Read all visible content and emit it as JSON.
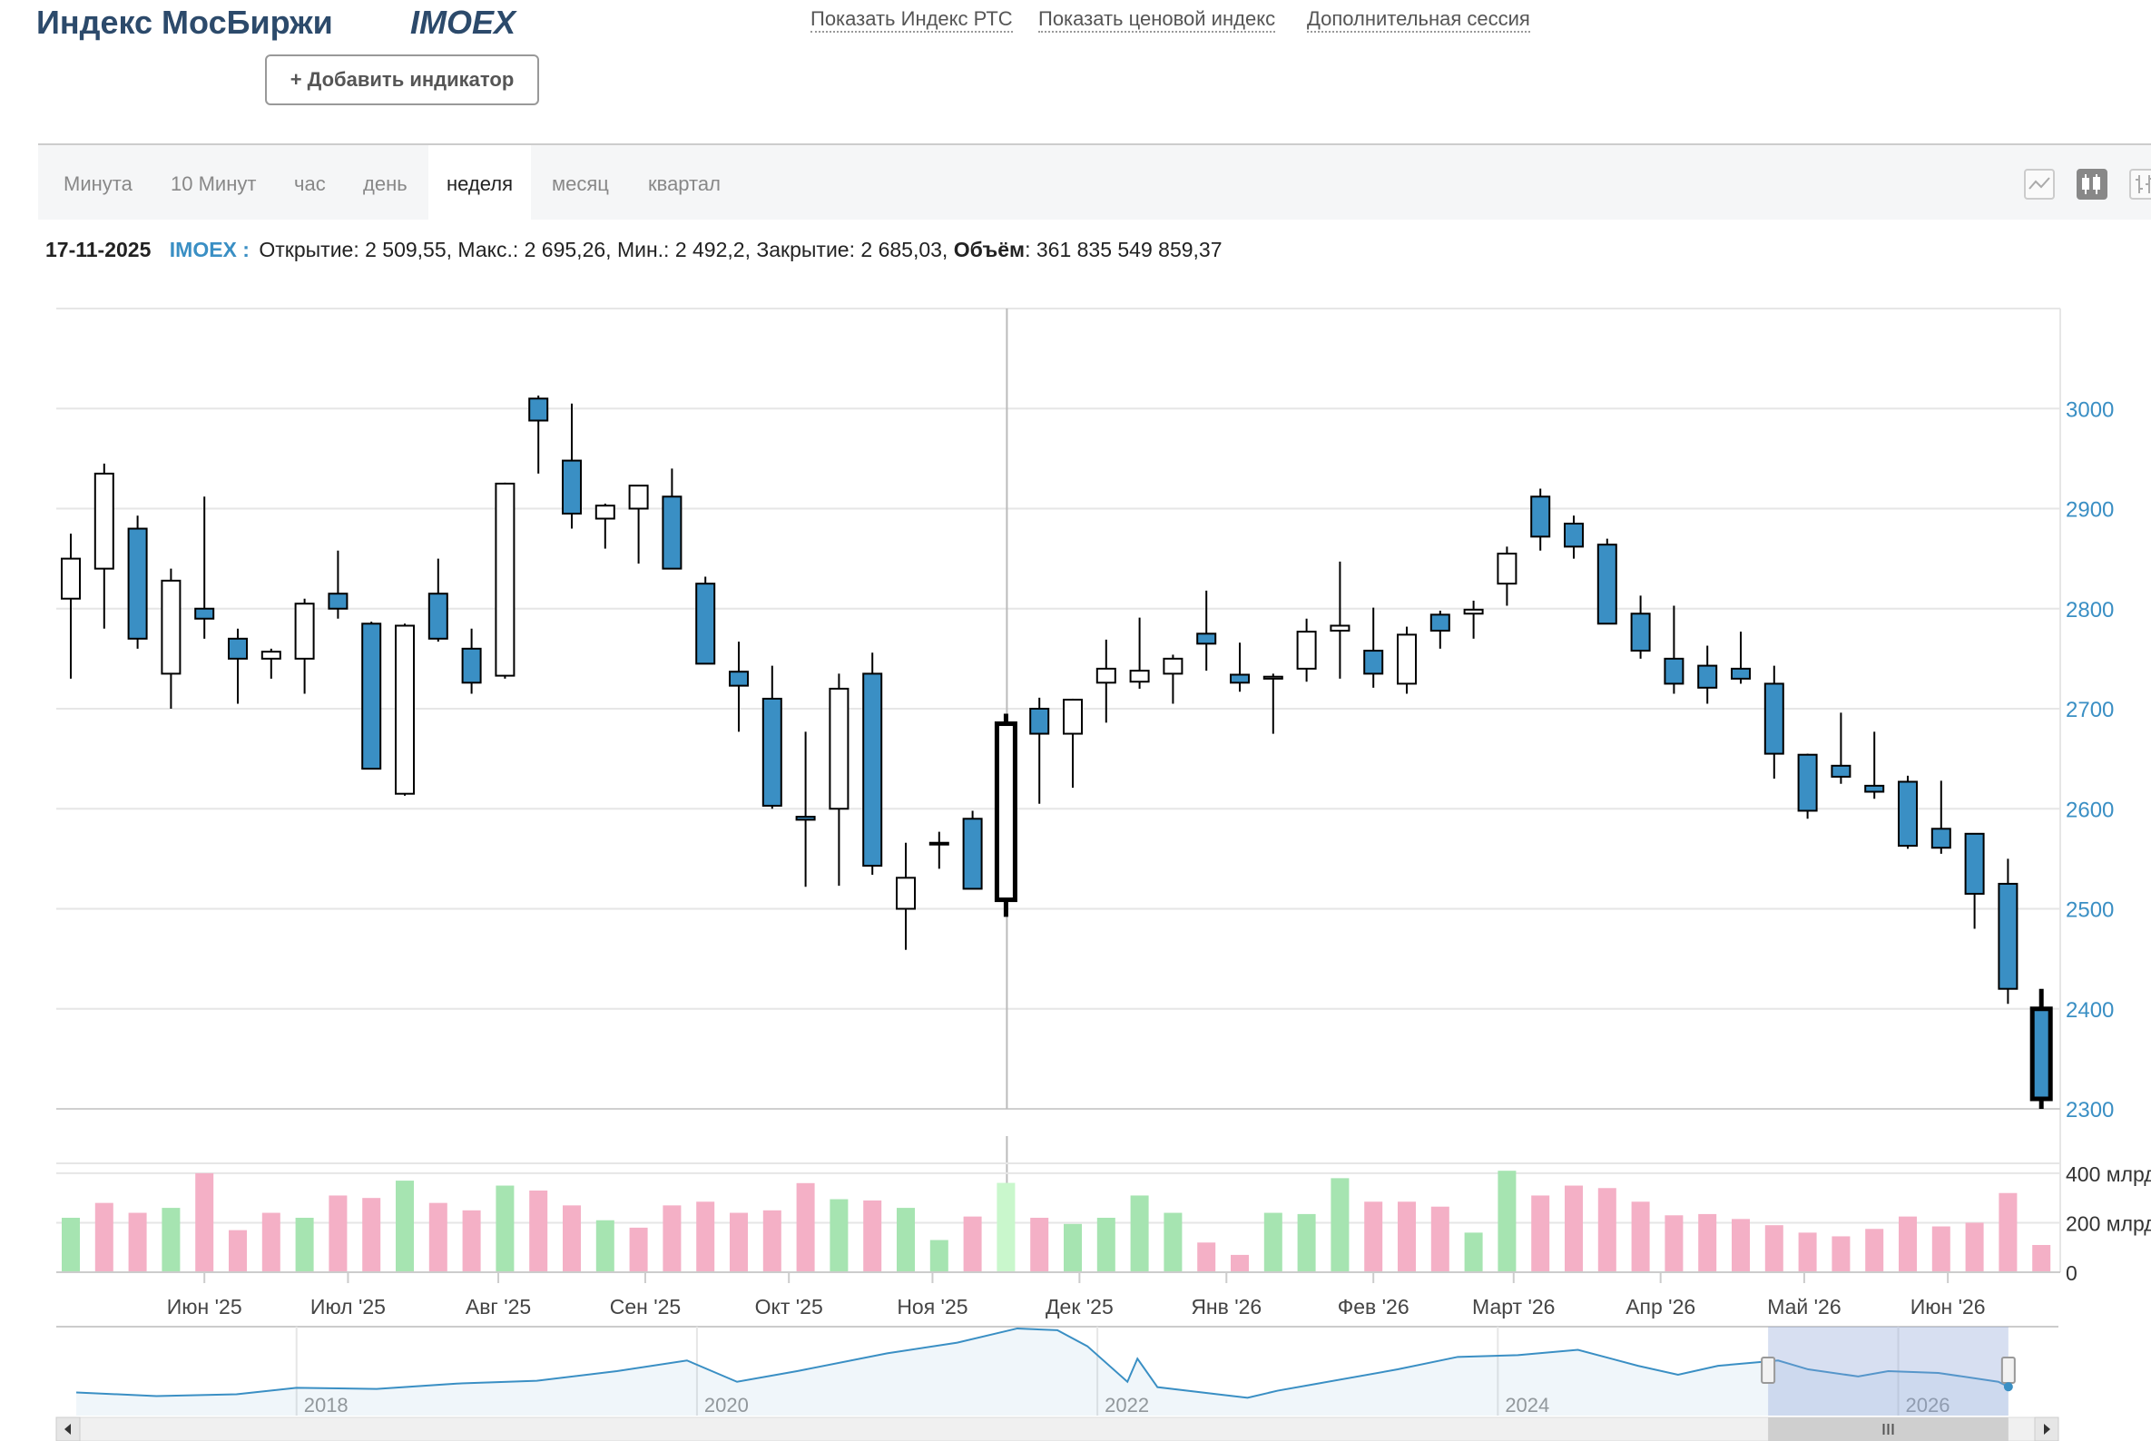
{
  "header": {
    "title": "Индекс МосБиржи",
    "ticker": "IMOEX",
    "links": [
      "Показать Индекс РТС",
      "Показать ценовой индекс",
      "Дополнительная сессия"
    ],
    "add_indicator": "+  Добавить индикатор"
  },
  "tabs": [
    "Минута",
    "10 Минут",
    "час",
    "день",
    "неделя",
    "месяц",
    "квартал"
  ],
  "active_tab": "неделя",
  "chart_types": [
    "line-chart-icon",
    "candlestick-chart-icon",
    "ohlc-chart-icon"
  ],
  "ohlc_line": {
    "date": "17-11-2025",
    "symbol": "IMOEX :",
    "open_label": "Открытие:",
    "open": "2 509,55",
    "high_label": "Макс.:",
    "high": "2 695,26",
    "low_label": "Мин.:",
    "low": "2 492,2",
    "close_label": "Закрытие:",
    "close": "2 685,03",
    "volume_label": "Объём",
    "volume": "361 835 549 859,37"
  },
  "chart_data": {
    "type": "candlestick",
    "price_axis": {
      "ticks": [
        2300,
        2400,
        2500,
        2600,
        2700,
        2800,
        2900,
        3000
      ],
      "range": [
        2300,
        3100
      ],
      "position": "right"
    },
    "volume_axis": {
      "ticks": [
        "0",
        "200 млрд",
        "400 млрд"
      ],
      "range": [
        0,
        440
      ]
    },
    "x_labels": [
      {
        "label": "Июн '25",
        "week": 4
      },
      {
        "label": "Июл '25",
        "week": 8.3
      },
      {
        "label": "Авг '25",
        "week": 12.8
      },
      {
        "label": "Сен '25",
        "week": 17.2
      },
      {
        "label": "Окт '25",
        "week": 21.5
      },
      {
        "label": "Ноя '25",
        "week": 25.8
      },
      {
        "label": "Дек '25",
        "week": 30.2
      },
      {
        "label": "Янв '26",
        "week": 34.6
      },
      {
        "label": "Фев '26",
        "week": 39
      },
      {
        "label": "Март '26",
        "week": 43.2
      },
      {
        "label": "Апр '26",
        "week": 47.6
      },
      {
        "label": "Май '26",
        "week": 51.9
      },
      {
        "label": "Июн '26",
        "week": 56.2
      }
    ],
    "crosshair_week": 28,
    "highlighted_week": 28,
    "candles": [
      [
        2810,
        2875,
        2730,
        2850
      ],
      [
        2840,
        2945,
        2780,
        2935
      ],
      [
        2880,
        2893,
        2760,
        2770
      ],
      [
        2735,
        2840,
        2700,
        2828
      ],
      [
        2800,
        2912,
        2770,
        2790
      ],
      [
        2770,
        2780,
        2705,
        2750
      ],
      [
        2750,
        2760,
        2730,
        2757
      ],
      [
        2750,
        2810,
        2715,
        2805
      ],
      [
        2815,
        2858,
        2790,
        2800
      ],
      [
        2785,
        2787,
        2640,
        2640
      ],
      [
        2615,
        2785,
        2613,
        2783
      ],
      [
        2815,
        2850,
        2767,
        2770
      ],
      [
        2760,
        2780,
        2715,
        2726
      ],
      [
        2733,
        2926,
        2730,
        2925
      ],
      [
        3010,
        3013,
        2935,
        2988
      ],
      [
        2948,
        3005,
        2880,
        2895
      ],
      [
        2890,
        2905,
        2860,
        2903
      ],
      [
        2900,
        2920,
        2845,
        2923
      ],
      [
        2912,
        2940,
        2847,
        2840
      ],
      [
        2825,
        2832,
        2745,
        2745
      ],
      [
        2737,
        2767,
        2677,
        2723
      ],
      [
        2710,
        2743,
        2600,
        2603
      ],
      [
        2592,
        2677,
        2522,
        2589
      ],
      [
        2600,
        2735,
        2523,
        2720
      ],
      [
        2735,
        2756,
        2534,
        2543
      ],
      [
        2500,
        2566,
        2459,
        2531
      ],
      [
        2565,
        2577,
        2540,
        2566
      ],
      [
        2590,
        2598,
        2520,
        2520
      ],
      [
        2509,
        2695,
        2492,
        2685
      ],
      [
        2700,
        2711,
        2605,
        2675
      ],
      [
        2675,
        2710,
        2621,
        2709
      ],
      [
        2726,
        2769,
        2686,
        2740
      ],
      [
        2727,
        2791,
        2720,
        2738
      ],
      [
        2735,
        2754,
        2705,
        2750
      ],
      [
        2775,
        2818,
        2738,
        2765
      ],
      [
        2734,
        2766,
        2717,
        2726
      ],
      [
        2730,
        2735,
        2675,
        2732
      ],
      [
        2740,
        2790,
        2727,
        2777
      ],
      [
        2778,
        2847,
        2730,
        2783
      ],
      [
        2758,
        2801,
        2721,
        2735
      ],
      [
        2725,
        2782,
        2715,
        2774
      ],
      [
        2794,
        2798,
        2760,
        2778
      ],
      [
        2795,
        2808,
        2770,
        2799
      ],
      [
        2825,
        2862,
        2803,
        2855
      ],
      [
        2912,
        2920,
        2858,
        2872
      ],
      [
        2885,
        2893,
        2850,
        2862
      ],
      [
        2864,
        2870,
        2785,
        2785
      ],
      [
        2795,
        2813,
        2750,
        2758
      ],
      [
        2750,
        2803,
        2715,
        2725
      ],
      [
        2743,
        2763,
        2705,
        2721
      ],
      [
        2740,
        2777,
        2725,
        2730
      ],
      [
        2725,
        2743,
        2630,
        2655
      ],
      [
        2654,
        2655,
        2590,
        2598
      ],
      [
        2643,
        2696,
        2625,
        2632
      ],
      [
        2623,
        2677,
        2610,
        2617
      ],
      [
        2627,
        2633,
        2560,
        2563
      ],
      [
        2580,
        2628,
        2555,
        2561
      ],
      [
        2575,
        2575,
        2480,
        2515
      ],
      [
        2525,
        2550,
        2405,
        2420
      ],
      [
        2400,
        2420,
        2300,
        2310
      ]
    ],
    "volumes": [
      {
        "v": 220,
        "dir": "up"
      },
      {
        "v": 280,
        "dir": "down"
      },
      {
        "v": 240,
        "dir": "down"
      },
      {
        "v": 260,
        "dir": "up"
      },
      {
        "v": 400,
        "dir": "down"
      },
      {
        "v": 170,
        "dir": "down"
      },
      {
        "v": 240,
        "dir": "down"
      },
      {
        "v": 220,
        "dir": "up"
      },
      {
        "v": 310,
        "dir": "down"
      },
      {
        "v": 300,
        "dir": "down"
      },
      {
        "v": 370,
        "dir": "up"
      },
      {
        "v": 280,
        "dir": "down"
      },
      {
        "v": 250,
        "dir": "down"
      },
      {
        "v": 350,
        "dir": "up"
      },
      {
        "v": 330,
        "dir": "down"
      },
      {
        "v": 270,
        "dir": "down"
      },
      {
        "v": 210,
        "dir": "up"
      },
      {
        "v": 180,
        "dir": "down"
      },
      {
        "v": 270,
        "dir": "down"
      },
      {
        "v": 285,
        "dir": "down"
      },
      {
        "v": 240,
        "dir": "down"
      },
      {
        "v": 250,
        "dir": "down"
      },
      {
        "v": 360,
        "dir": "down"
      },
      {
        "v": 295,
        "dir": "up"
      },
      {
        "v": 290,
        "dir": "down"
      },
      {
        "v": 260,
        "dir": "up"
      },
      {
        "v": 130,
        "dir": "up"
      },
      {
        "v": 225,
        "dir": "down"
      },
      {
        "v": 361,
        "dir": "up"
      },
      {
        "v": 220,
        "dir": "down"
      },
      {
        "v": 195,
        "dir": "up"
      },
      {
        "v": 220,
        "dir": "up"
      },
      {
        "v": 310,
        "dir": "up"
      },
      {
        "v": 240,
        "dir": "up"
      },
      {
        "v": 120,
        "dir": "down"
      },
      {
        "v": 70,
        "dir": "down"
      },
      {
        "v": 240,
        "dir": "up"
      },
      {
        "v": 235,
        "dir": "up"
      },
      {
        "v": 380,
        "dir": "up"
      },
      {
        "v": 285,
        "dir": "down"
      },
      {
        "v": 285,
        "dir": "down"
      },
      {
        "v": 265,
        "dir": "down"
      },
      {
        "v": 160,
        "dir": "up"
      },
      {
        "v": 410,
        "dir": "up"
      },
      {
        "v": 310,
        "dir": "down"
      },
      {
        "v": 350,
        "dir": "down"
      },
      {
        "v": 340,
        "dir": "down"
      },
      {
        "v": 285,
        "dir": "down"
      },
      {
        "v": 230,
        "dir": "down"
      },
      {
        "v": 235,
        "dir": "down"
      },
      {
        "v": 215,
        "dir": "down"
      },
      {
        "v": 190,
        "dir": "down"
      },
      {
        "v": 160,
        "dir": "down"
      },
      {
        "v": 145,
        "dir": "down"
      },
      {
        "v": 175,
        "dir": "down"
      },
      {
        "v": 225,
        "dir": "down"
      },
      {
        "v": 185,
        "dir": "down"
      },
      {
        "v": 200,
        "dir": "down"
      },
      {
        "v": 320,
        "dir": "down"
      },
      {
        "v": 110,
        "dir": "down"
      }
    ],
    "navigator": {
      "labels": [
        "2018",
        "2020",
        "2022",
        "2024",
        "2026"
      ],
      "label_years": [
        2018,
        2020,
        2022,
        2024,
        2026
      ],
      "x_range": [
        2016.8,
        2026.8
      ],
      "y_range": [
        1500,
        4000
      ],
      "selection": [
        2025.35,
        2026.55
      ],
      "series": [
        [
          2016.9,
          2150
        ],
        [
          2017.3,
          2050
        ],
        [
          2017.7,
          2100
        ],
        [
          2018.0,
          2280
        ],
        [
          2018.4,
          2250
        ],
        [
          2018.8,
          2400
        ],
        [
          2019.2,
          2480
        ],
        [
          2019.6,
          2750
        ],
        [
          2019.95,
          3050
        ],
        [
          2020.2,
          2450
        ],
        [
          2020.5,
          2750
        ],
        [
          2020.95,
          3250
        ],
        [
          2021.3,
          3550
        ],
        [
          2021.6,
          3950
        ],
        [
          2021.8,
          3900
        ],
        [
          2021.95,
          3450
        ],
        [
          2022.15,
          2450
        ],
        [
          2022.2,
          3100
        ],
        [
          2022.3,
          2300
        ],
        [
          2022.6,
          2100
        ],
        [
          2022.75,
          2000
        ],
        [
          2022.9,
          2200
        ],
        [
          2023.1,
          2400
        ],
        [
          2023.5,
          2800
        ],
        [
          2023.8,
          3150
        ],
        [
          2024.1,
          3200
        ],
        [
          2024.4,
          3350
        ],
        [
          2024.7,
          2900
        ],
        [
          2024.9,
          2650
        ],
        [
          2025.1,
          2900
        ],
        [
          2025.4,
          3050
        ],
        [
          2025.55,
          2800
        ],
        [
          2025.8,
          2600
        ],
        [
          2025.95,
          2750
        ],
        [
          2026.2,
          2700
        ],
        [
          2026.5,
          2450
        ],
        [
          2026.55,
          2310
        ]
      ]
    }
  }
}
